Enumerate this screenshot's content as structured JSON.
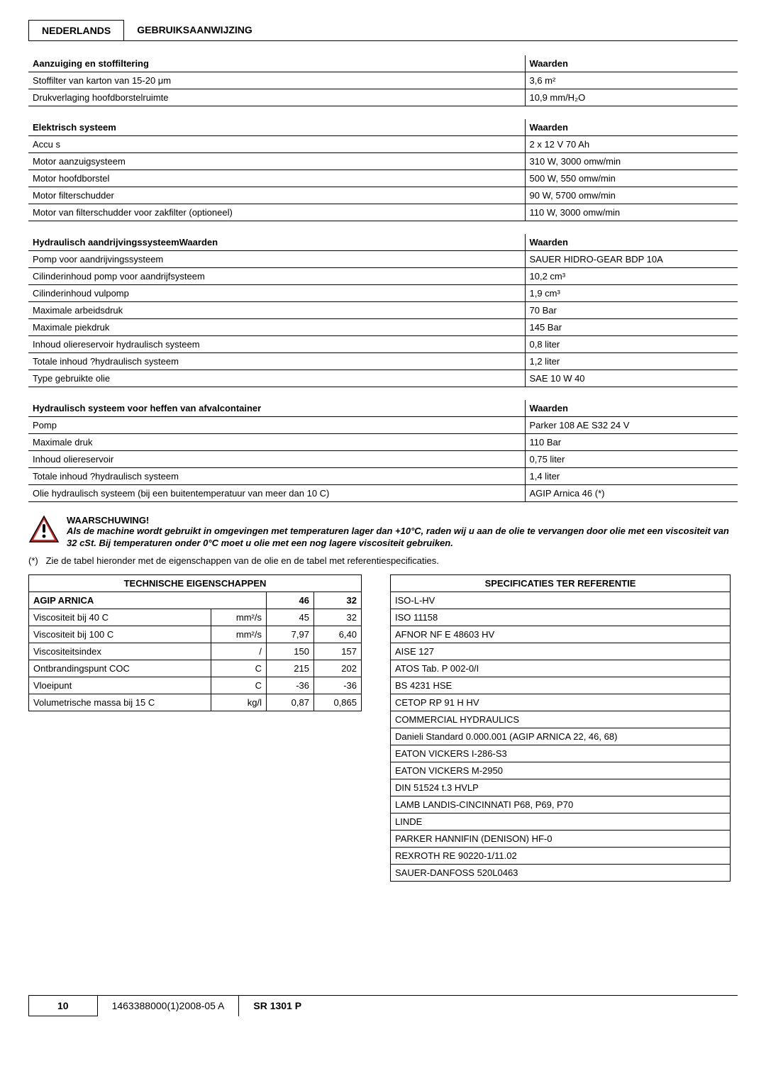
{
  "header": {
    "lang": "NEDERLANDS",
    "title": "GEBRUIKSAANWIJZING"
  },
  "tables": [
    {
      "heading_left": "Aanzuiging en stoffiltering",
      "heading_right": "Waarden",
      "rows": [
        {
          "label": "Stoffilter van karton van 15-20 μm",
          "value": "3,6 m²"
        },
        {
          "label": "Drukverlaging hoofdborstelruimte",
          "value": "10,9 mm/H₂O"
        }
      ]
    },
    {
      "heading_left": "Elektrisch systeem",
      "heading_right": "Waarden",
      "rows": [
        {
          "label": "Accu s",
          "value": "2 x 12 V   70 Ah"
        },
        {
          "label": "Motor aanzuigsysteem",
          "value": "310 W, 3000 omw/min"
        },
        {
          "label": "Motor hoofdborstel",
          "value": "500 W, 550 omw/min"
        },
        {
          "label": "Motor filterschudder",
          "value": "90 W, 5700 omw/min"
        },
        {
          "label": "Motor van filterschudder voor zakfilter (optioneel)",
          "value": "110 W, 3000 omw/min"
        }
      ]
    },
    {
      "heading_left": "Hydraulisch aandrijvingssysteemWaarden",
      "heading_right": "Waarden",
      "rows": [
        {
          "label": "Pomp voor aandrijvingssysteem",
          "value": "SAUER HIDRO-GEAR BDP 10A"
        },
        {
          "label": "Cilinderinhoud pomp voor aandrijfsysteem",
          "value": "10,2 cm³"
        },
        {
          "label": "Cilinderinhoud vulpomp",
          "value": "1,9 cm³"
        },
        {
          "label": "Maximale arbeidsdruk",
          "value": "70 Bar"
        },
        {
          "label": "Maximale piekdruk",
          "value": "145 Bar"
        },
        {
          "label": "Inhoud oliereservoir hydraulisch systeem",
          "value": "0,8 liter"
        },
        {
          "label": "Totale inhoud ?hydraulisch systeem",
          "value": "1,2 liter"
        },
        {
          "label": "Type gebruikte olie",
          "value": "SAE 10 W 40"
        }
      ]
    },
    {
      "heading_left": "Hydraulisch systeem voor heffen van afvalcontainer",
      "heading_right": "Waarden",
      "rows": [
        {
          "label": "Pomp",
          "value": "Parker 108 AE S32   24 V"
        },
        {
          "label": "Maximale druk",
          "value": "110 Bar"
        },
        {
          "label": "Inhoud oliereservoir",
          "value": "0,75 liter"
        },
        {
          "label": "Totale inhoud ?hydraulisch systeem",
          "value": "1,4 liter"
        },
        {
          "label": "Olie hydraulisch systeem (bij een buitentemperatuur van meer dan 10 C)",
          "value": "AGIP Arnica 46 (*)"
        }
      ]
    }
  ],
  "warning": {
    "title": "WAARSCHUWING!",
    "body": "Als de machine wordt gebruikt in omgevingen met temperaturen lager dan +10°C, raden wij u aan de olie te vervangen door olie met een viscositeit van 32 cSt. Bij temperaturen onder 0°C moet u olie met een nog lagere viscositeit gebruiken."
  },
  "note": {
    "marker": "(*)",
    "text": "Zie de tabel hieronder met de eigenschappen van de olie en de tabel met referentiespecificaties."
  },
  "props_table": {
    "title": "TECHNISCHE EIGENSCHAPPEN",
    "brand": "AGIP ARNICA",
    "cols": [
      "46",
      "32"
    ],
    "rows": [
      {
        "label": "Viscositeit bij 40 C",
        "unit": "mm²/s",
        "v1": "45",
        "v2": "32"
      },
      {
        "label": "Viscositeit bij 100 C",
        "unit": "mm²/s",
        "v1": "7,97",
        "v2": "6,40"
      },
      {
        "label": "Viscositeitsindex",
        "unit": "/",
        "v1": "150",
        "v2": "157"
      },
      {
        "label": "Ontbrandingspunt COC",
        "unit": "C",
        "v1": "215",
        "v2": "202"
      },
      {
        "label": "Vloeipunt",
        "unit": "C",
        "v1": "-36",
        "v2": "-36"
      },
      {
        "label": "Volumetrische massa bij 15 C",
        "unit": "kg/l",
        "v1": "0,87",
        "v2": "0,865"
      }
    ]
  },
  "refs_table": {
    "title": "SPECIFICATIES TER REFERENTIE",
    "rows": [
      "ISO-L-HV",
      "ISO 11158",
      "AFNOR NF E 48603 HV",
      "AISE 127",
      "ATOS Tab. P 002-0/I",
      "BS 4231 HSE",
      "CETOP RP 91 H HV",
      "COMMERCIAL HYDRAULICS",
      "Danieli Standard 0.000.001 (AGIP ARNICA 22, 46, 68)",
      "EATON VICKERS I-286-S3",
      "EATON VICKERS M-2950",
      "DIN 51524 t.3 HVLP",
      "LAMB LANDIS-CINCINNATI P68, P69, P70",
      "LINDE",
      "PARKER HANNIFIN (DENISON) HF-0",
      "REXROTH RE 90220-1/11.02",
      "SAUER-DANFOSS 520L0463"
    ]
  },
  "footer": {
    "page": "10",
    "doc": "1463388000(1)2008-05 A",
    "model": "SR 1301 P"
  }
}
